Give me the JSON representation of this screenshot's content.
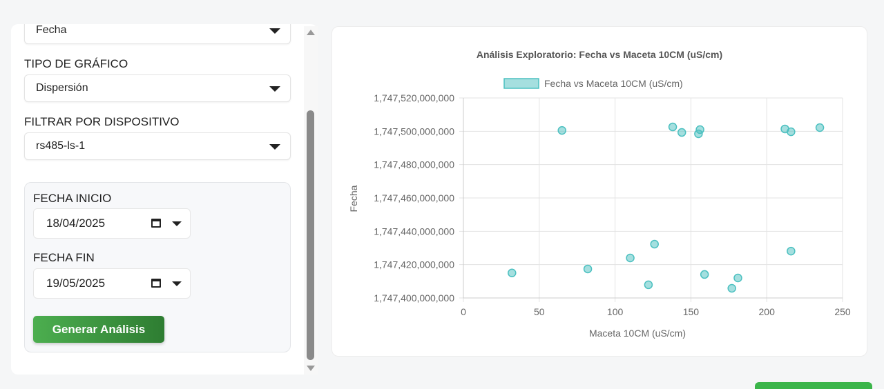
{
  "panel": {
    "axis_select_value": "Fecha",
    "chart_type_label": "TIPO DE GRÁFICO",
    "chart_type_value": "Dispersión",
    "device_label": "FILTRAR POR DISPOSITIVO",
    "device_value": "rs485-ls-1",
    "start_date_label": "FECHA INICIO",
    "start_date_value": "18/04/2025",
    "end_date_label": "FECHA FIN",
    "end_date_value": "19/05/2025",
    "generate_button": "Generar Análisis"
  },
  "chart_data": {
    "type": "scatter",
    "title": "Análisis Exploratorio: Fecha vs Maceta 10CM (uS/cm)",
    "xlabel": "Maceta 10CM (uS/cm)",
    "ylabel": "Fecha",
    "xlim": [
      0,
      250
    ],
    "ylim": [
      1747400000000,
      1747520000000
    ],
    "xticks": [
      "0",
      "50",
      "100",
      "150",
      "200",
      "250"
    ],
    "yticks": [
      "1,747,400,000,000",
      "1,747,420,000,000",
      "1,747,440,000,000",
      "1,747,460,000,000",
      "1,747,480,000,000",
      "1,747,500,000,000",
      "1,747,520,000,000"
    ],
    "legend_position": "top",
    "grid": true,
    "color": "#4bc0c0",
    "series": [
      {
        "name": "Fecha vs Maceta 10CM (uS/cm)",
        "points": [
          [
            32,
            1747415000000
          ],
          [
            65,
            1747500500000
          ],
          [
            82,
            1747417400000
          ],
          [
            110,
            1747424000000
          ],
          [
            122,
            1747407900000
          ],
          [
            126,
            1747432300000
          ],
          [
            138,
            1747502600000
          ],
          [
            144,
            1747499300000
          ],
          [
            155,
            1747498500000
          ],
          [
            156,
            1747501000000
          ],
          [
            159,
            1747414100000
          ],
          [
            177,
            1747405800000
          ],
          [
            181,
            1747412000000
          ],
          [
            212,
            1747501400000
          ],
          [
            216,
            1747499700000
          ],
          [
            216,
            1747428100000
          ],
          [
            235,
            1747502200000
          ]
        ]
      }
    ]
  }
}
